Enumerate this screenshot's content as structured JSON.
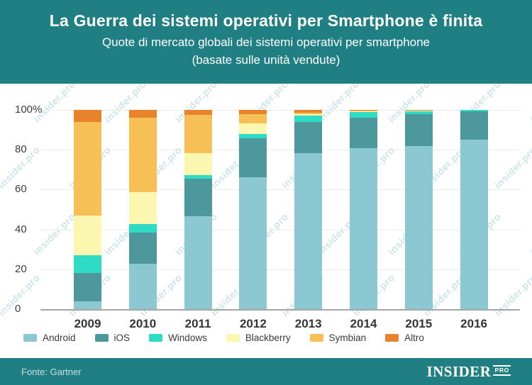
{
  "header": {
    "title": "La Guerra dei sistemi operativi per Smartphone è finita",
    "subtitle_line1": "Quote di mercato globali dei sistemi operativi per smartphone",
    "subtitle_line2": "(basate sulle unità vendute)"
  },
  "chart_data": {
    "type": "bar",
    "stacked": true,
    "title": "La Guerra dei sistemi operativi per Smartphone è finita",
    "subtitle": "Quote di mercato globali dei sistemi operativi per smartphone (basate sulle unità vendute)",
    "categories": [
      "2009",
      "2010",
      "2011",
      "2012",
      "2013",
      "2014",
      "2015",
      "2016"
    ],
    "series": [
      {
        "name": "Android",
        "color": "#8CC8D2",
        "values": [
          3.9,
          22.7,
          46.5,
          66.3,
          78.4,
          80.7,
          81.9,
          84.9
        ]
      },
      {
        "name": "iOS",
        "color": "#4D989C",
        "values": [
          14.4,
          15.7,
          18.9,
          19.3,
          15.6,
          15.4,
          16.0,
          14.4
        ]
      },
      {
        "name": "Windows",
        "color": "#2EDCC6",
        "values": [
          8.7,
          4.2,
          1.9,
          2.2,
          3.2,
          2.8,
          1.7,
          0.7
        ]
      },
      {
        "name": "Blackberry",
        "color": "#FCF7B0",
        "values": [
          19.9,
          16.0,
          10.9,
          5.5,
          0.6,
          0.4,
          0.2,
          0.0
        ]
      },
      {
        "name": "Symbian",
        "color": "#F7C056",
        "values": [
          46.9,
          37.6,
          19.2,
          4.6,
          0.9,
          0.3,
          0.0,
          0.0
        ]
      },
      {
        "name": "Altro",
        "color": "#E8832C",
        "values": [
          6.2,
          3.8,
          2.6,
          2.1,
          1.3,
          0.4,
          0.2,
          0.0
        ]
      }
    ],
    "ylim": [
      0,
      100
    ],
    "y_ticks": [
      "100%",
      "80",
      "60",
      "40",
      "20",
      "0"
    ],
    "grid": true,
    "legend_position": "bottom"
  },
  "footer": {
    "source": "Fonte: Gartner",
    "logo_main": "INSIDER",
    "logo_sub": "PRO"
  },
  "watermark": {
    "text": "insider.pro"
  },
  "colors": {
    "header_bg": "#207F82",
    "footer_bg": "#207F82",
    "axis_text": "#3C3C3C",
    "grid_line": "#ECECEC",
    "baseline": "#A6A6A6",
    "watermark": "#8FC6CB"
  }
}
